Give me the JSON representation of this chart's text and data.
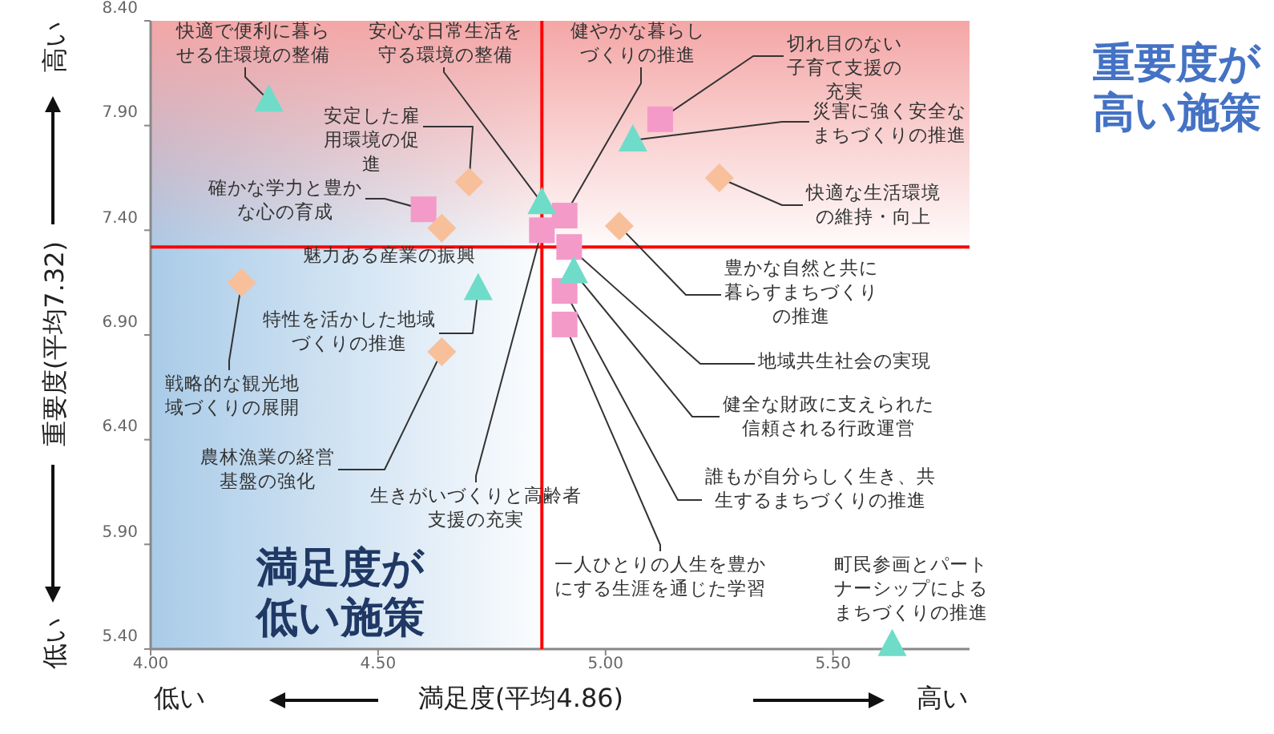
{
  "chart_data": {
    "type": "scatter",
    "xlabel": "満足度(平均4.86)",
    "ylabel": "重要度(平均7.32)",
    "xlim": [
      4,
      5.8
    ],
    "ylim": [
      5.4,
      8.4
    ],
    "xticks": [
      {
        "value": 4,
        "label": "4.00"
      },
      {
        "value": 4.5,
        "label": "4.50"
      },
      {
        "value": 5,
        "label": "5.00"
      },
      {
        "value": 5.5,
        "label": "5.50"
      }
    ],
    "yticks": [
      {
        "value": 5.4,
        "label": "5.40"
      },
      {
        "value": 5.9,
        "label": "5.90"
      },
      {
        "value": 6.4,
        "label": "6.40"
      },
      {
        "value": 6.9,
        "label": "6.90"
      },
      {
        "value": 7.4,
        "label": "7.40"
      },
      {
        "value": 7.9,
        "label": "7.90"
      },
      {
        "value": 8.4,
        "label": "8.40"
      }
    ],
    "grid": false,
    "series": [
      {
        "color": "#f49ac8",
        "marker": "square",
        "x": [
          5.12,
          4.6,
          4.91,
          4.86,
          4.92,
          4.91,
          4.91
        ],
        "values": [
          7.93,
          7.5,
          7.47,
          7.4,
          7.32,
          7.11,
          6.95
        ]
      },
      {
        "color": "#f8c09a",
        "marker": "diamond",
        "x": [
          4.7,
          4.64,
          5.25,
          5.03,
          4.2,
          4.64
        ],
        "values": [
          7.63,
          7.41,
          7.65,
          7.42,
          7.15,
          6.82
        ]
      },
      {
        "color": "#6fdcc9",
        "marker": "triangle",
        "x": [
          4.26,
          4.86,
          5.06,
          4.72,
          4.93,
          5.63
        ],
        "values": [
          8.02,
          7.53,
          7.83,
          7.12,
          7.2,
          5.42
        ]
      }
    ],
    "ref_lines": [
      {
        "axis": "x",
        "value": 4.86,
        "color": "#ff0000"
      },
      {
        "axis": "y",
        "value": 7.32,
        "color": "#ff0000"
      }
    ],
    "bands": [
      {
        "axis": "x",
        "from": 4,
        "to": 4.86,
        "color": "#a9cbe8"
      },
      {
        "axis": "y",
        "from": 7.32,
        "to": 8.4,
        "color": "#f4a6a6"
      }
    ],
    "annotations": [
      {
        "text": "快適で便利に暮らせる住環境の整備",
        "x": 4.26,
        "y": 8.02
      },
      {
        "text": "安心な日常生活を守る環境の整備",
        "x": 4.86,
        "y": 7.53
      },
      {
        "text": "健やかな暮らしづくりの推進",
        "x": 4.91,
        "y": 7.47
      },
      {
        "text": "切れ目のない子育て支援の充実",
        "x": 5.12,
        "y": 7.93
      },
      {
        "text": "災害に強く安全なまちづくりの推進",
        "x": 5.06,
        "y": 7.83
      },
      {
        "text": "安定した雇用環境の促進",
        "x": 4.7,
        "y": 7.63
      },
      {
        "text": "快適な生活環境の維持・向上",
        "x": 5.25,
        "y": 7.65
      },
      {
        "text": "確かな学力と豊かな心の育成",
        "x": 4.6,
        "y": 7.5
      },
      {
        "text": "豊かな自然と共に暮らすまちづくりの推進",
        "x": 5.03,
        "y": 7.42
      },
      {
        "text": "地域共生社会の実現",
        "x": 4.92,
        "y": 7.32
      },
      {
        "text": "健全な財政に支えられた信頼される行政運営",
        "x": 4.93,
        "y": 7.2
      },
      {
        "text": "誰もが自分らしく生き、共生するまちづくりの推進",
        "x": 4.91,
        "y": 7.11
      },
      {
        "text": "一人ひとりの人生を豊かにする生涯を通じた学習",
        "x": 4.91,
        "y": 6.95
      },
      {
        "text": "特性を活かした地域づくりの推進",
        "x": 4.72,
        "y": 7.12
      },
      {
        "text": "戦略的な観光地域づくりの展開",
        "x": 4.2,
        "y": 7.15
      },
      {
        "text": "農林漁業の経営基盤の強化",
        "x": 4.64,
        "y": 6.82
      },
      {
        "text": "生きがいづくりと高齢者支援の充実",
        "x": 4.86,
        "y": 7.4
      },
      "満足度が低い施策",
      "重要度が高い施策",
      "低い",
      "高い",
      "高い",
      "低い",
      "魅力ある産業の振興",
      "町民参画とパートナーシップによるまちづくりの推進"
    ]
  }
}
